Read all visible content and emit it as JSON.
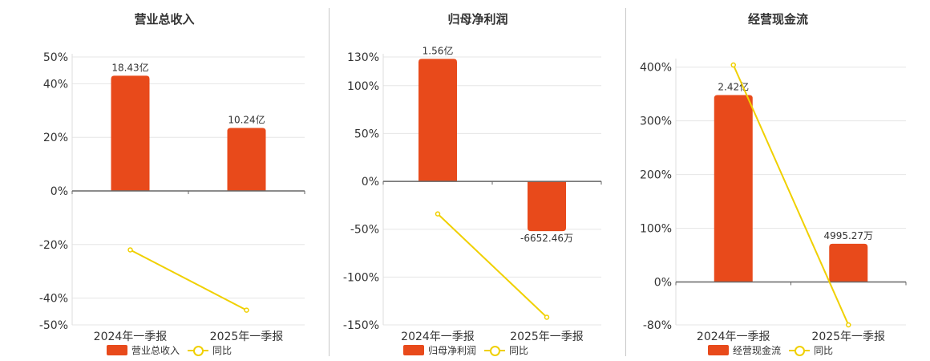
{
  "colors": {
    "bar": "#e84a1b",
    "line": "#f0d000",
    "axis": "#666666",
    "grid": "#e6e6e6"
  },
  "chart_data": [
    {
      "type": "bar",
      "title": "营业总收入",
      "categories": [
        "2024年一季报",
        "2025年一季报"
      ],
      "series": [
        {
          "name": "营业总收入",
          "type": "bar",
          "values": [
            43,
            23.5
          ],
          "labels": [
            "18.43亿",
            "10.24亿"
          ]
        },
        {
          "name": "同比",
          "type": "line",
          "values": [
            -22,
            -44.5
          ]
        }
      ],
      "ylim": [
        -50,
        50
      ],
      "yticks": [
        50,
        40,
        20,
        0,
        -20,
        -40,
        -50
      ],
      "ytick_labels": [
        "50%",
        "40%",
        "20%",
        "0%",
        "-20%",
        "-40%",
        "-50%"
      ],
      "grid": true,
      "legend": "bottom"
    },
    {
      "type": "bar",
      "title": "归母净利润",
      "categories": [
        "2024年一季报",
        "2025年一季报"
      ],
      "series": [
        {
          "name": "归母净利润",
          "type": "bar",
          "values": [
            128,
            -52
          ],
          "labels": [
            "1.56亿",
            "-6652.46万"
          ]
        },
        {
          "name": "同比",
          "type": "line",
          "values": [
            -34,
            -142
          ]
        }
      ],
      "ylim": [
        -150,
        130
      ],
      "yticks": [
        130,
        100,
        50,
        0,
        -50,
        -100,
        -150
      ],
      "ytick_labels": [
        "130%",
        "100%",
        "50%",
        "0%",
        "-50%",
        "-100%",
        "-150%"
      ],
      "grid": true,
      "legend": "bottom"
    },
    {
      "type": "bar",
      "title": "经营现金流",
      "categories": [
        "2024年一季报",
        "2025年一季报"
      ],
      "series": [
        {
          "name": "经营现金流",
          "type": "bar",
          "values": [
            348,
            71
          ],
          "labels": [
            "2.42亿",
            "4995.27万"
          ]
        },
        {
          "name": "同比",
          "type": "line",
          "values": [
            404,
            -80
          ]
        }
      ],
      "ylim": [
        -80,
        410
      ],
      "yticks": [
        400,
        300,
        200,
        100,
        0,
        -80
      ],
      "ytick_labels": [
        "400%",
        "300%",
        "200%",
        "100%",
        "0%",
        "-80%"
      ],
      "grid": true,
      "legend": "bottom"
    }
  ]
}
